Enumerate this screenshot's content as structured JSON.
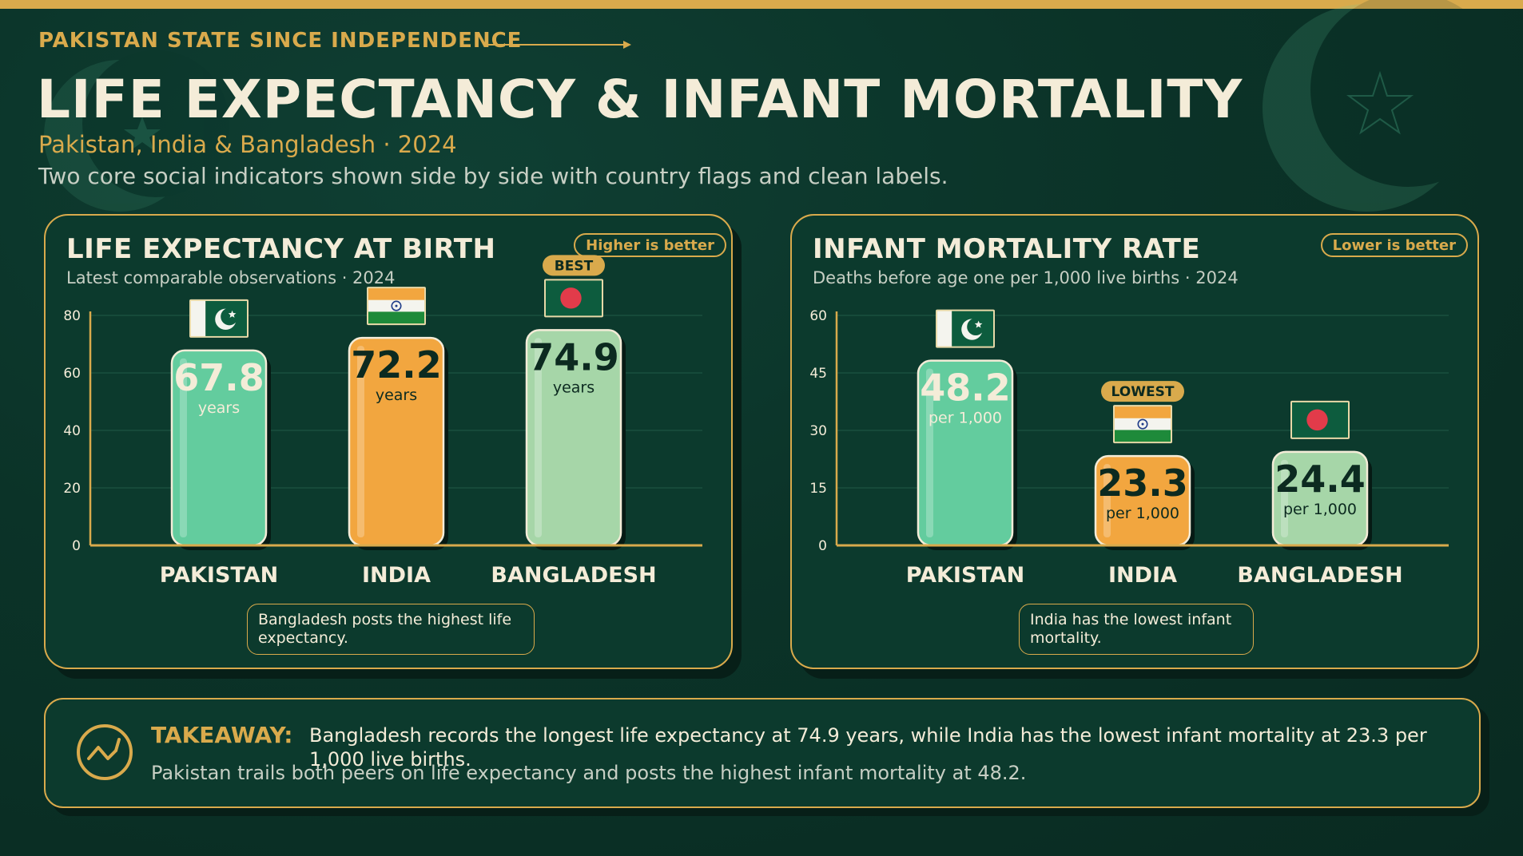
{
  "header": {
    "kicker": "PAKISTAN STATE SINCE INDEPENDENCE",
    "title": "LIFE EXPECTANCY & INFANT MORTALITY",
    "subtitle": "Pakistan, India & Bangladesh · 2024",
    "description": "Two core social indicators shown side by side with country flags and clean labels."
  },
  "colors": {
    "background": "#0b3328",
    "accent": "#d9aa4c",
    "pakistan": "#63cc9e",
    "india": "#f2a63f",
    "bangladesh": "#a6d6a8",
    "text": "#f4ecd8"
  },
  "chart_data": [
    {
      "type": "bar",
      "title": "LIFE EXPECTANCY AT BIRTH",
      "subtitle": "Latest comparable observations · 2024",
      "badge": "Higher is better",
      "categories": [
        "PAKISTAN",
        "INDIA",
        "BANGLADESH"
      ],
      "values": [
        67.8,
        72.2,
        74.9
      ],
      "value_labels": [
        "67.8",
        "72.2",
        "74.9"
      ],
      "unit": "years",
      "ylim": [
        0,
        80
      ],
      "yticks": [
        0,
        20,
        40,
        60,
        80
      ],
      "grid": true,
      "highlight": {
        "index": 2,
        "label": "BEST"
      },
      "flags": [
        "pakistan-flag",
        "india-flag",
        "bangladesh-flag"
      ],
      "note": "Bangladesh posts the highest life expectancy."
    },
    {
      "type": "bar",
      "title": "INFANT MORTALITY RATE",
      "subtitle": "Deaths before age one per 1,000 live births · 2024",
      "badge": "Lower is better",
      "categories": [
        "PAKISTAN",
        "INDIA",
        "BANGLADESH"
      ],
      "values": [
        48.2,
        23.3,
        24.4
      ],
      "value_labels": [
        "48.2",
        "23.3",
        "24.4"
      ],
      "unit": "per 1,000",
      "ylim": [
        0,
        60
      ],
      "yticks": [
        0,
        15,
        30,
        45,
        60
      ],
      "grid": true,
      "highlight": {
        "index": 1,
        "label": "LOWEST"
      },
      "flags": [
        "pakistan-flag",
        "india-flag",
        "bangladesh-flag"
      ],
      "note": "India has the lowest infant mortality."
    }
  ],
  "takeaway": {
    "label": "TAKEAWAY:",
    "text": "Bangladesh records the longest life expectancy at 74.9 years, while India has the lowest infant mortality at 23.3 per 1,000 live births.",
    "secondary": "Pakistan trails both peers on life expectancy and posts the highest infant mortality at 48.2."
  }
}
